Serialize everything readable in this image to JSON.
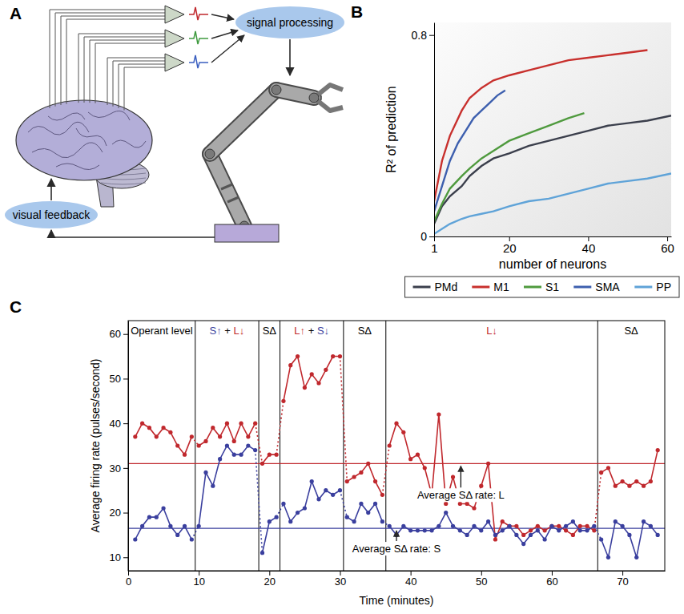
{
  "diagram": {
    "panel_label": "A",
    "nodes": [
      {
        "label": "signal processing"
      },
      {
        "label": "visual feedback"
      }
    ]
  },
  "chart_data": [
    {
      "type": "line",
      "panel_label": "B",
      "x_label": "number of neurons",
      "y_label": "R² of prediction",
      "xlim": [
        1,
        61
      ],
      "xticks": [
        1,
        20,
        40,
        60
      ],
      "ylim": [
        0,
        0.85
      ],
      "yticks": [
        0,
        0.8
      ],
      "legend": "bottom",
      "series": [
        {
          "name": "PMd",
          "color": "#3b3f4c",
          "x": [
            1,
            3,
            5,
            8,
            10,
            13,
            16,
            20,
            25,
            30,
            35,
            40,
            45,
            50,
            55,
            61
          ],
          "values": [
            0.05,
            0.12,
            0.16,
            0.2,
            0.24,
            0.28,
            0.31,
            0.33,
            0.36,
            0.38,
            0.4,
            0.42,
            0.44,
            0.45,
            0.46,
            0.48
          ]
        },
        {
          "name": "M1",
          "color": "#c8302d",
          "x": [
            1,
            3,
            5,
            8,
            10,
            13,
            16,
            20,
            25,
            30,
            35,
            40,
            45,
            50,
            55
          ],
          "values": [
            0.14,
            0.3,
            0.4,
            0.5,
            0.55,
            0.59,
            0.62,
            0.64,
            0.66,
            0.68,
            0.7,
            0.71,
            0.72,
            0.73,
            0.74
          ]
        },
        {
          "name": "S1",
          "color": "#4f9a3e",
          "x": [
            1,
            3,
            5,
            8,
            10,
            13,
            16,
            20,
            25,
            30,
            35,
            39
          ],
          "values": [
            0.06,
            0.13,
            0.19,
            0.24,
            0.27,
            0.31,
            0.34,
            0.38,
            0.41,
            0.44,
            0.47,
            0.49
          ]
        },
        {
          "name": "SMA",
          "color": "#3d5fae",
          "x": [
            1,
            3,
            5,
            7,
            9,
            11,
            13,
            15,
            17,
            19
          ],
          "values": [
            0.1,
            0.2,
            0.3,
            0.37,
            0.42,
            0.47,
            0.5,
            0.53,
            0.56,
            0.58
          ]
        },
        {
          "name": "PP",
          "color": "#5fa3d8",
          "x": [
            1,
            3,
            5,
            8,
            10,
            13,
            16,
            20,
            25,
            30,
            35,
            40,
            45,
            50,
            55,
            61
          ],
          "values": [
            0.01,
            0.03,
            0.05,
            0.07,
            0.08,
            0.09,
            0.1,
            0.12,
            0.14,
            0.15,
            0.17,
            0.19,
            0.21,
            0.22,
            0.23,
            0.25
          ]
        }
      ]
    },
    {
      "type": "line",
      "panel_label": "C",
      "x_label": "Time (minutes)",
      "y_label": "Average firing rate (pulses/second)",
      "xlim": [
        0,
        76
      ],
      "xticks": [
        0,
        10,
        20,
        30,
        40,
        50,
        60,
        70
      ],
      "ylim": [
        7,
        63
      ],
      "yticks": [
        10,
        20,
        30,
        40,
        50,
        60
      ],
      "marker": "circle",
      "x": [
        1,
        2,
        3,
        4,
        5,
        6,
        7,
        8,
        9,
        10,
        11,
        12,
        13,
        14,
        15,
        16,
        17,
        18,
        19,
        20,
        21,
        22,
        23,
        24,
        25,
        26,
        27,
        28,
        29,
        30,
        31,
        32,
        33,
        34,
        35,
        36,
        37,
        38,
        39,
        40,
        41,
        42,
        43,
        44,
        45,
        46,
        47,
        48,
        49,
        50,
        51,
        52,
        53,
        54,
        55,
        56,
        57,
        58,
        59,
        60,
        61,
        62,
        63,
        64,
        65,
        66,
        67,
        68,
        69,
        70,
        71,
        72,
        73,
        74,
        75
      ],
      "series": [
        {
          "color": "#c0282d",
          "values": [
            37,
            40,
            39,
            37,
            39,
            38,
            35,
            33,
            37,
            35,
            36,
            39,
            37,
            40,
            36,
            40,
            37,
            40,
            31,
            33,
            33,
            45,
            53,
            55,
            48,
            51,
            49,
            52,
            55,
            55,
            27,
            28,
            29,
            31,
            27,
            24,
            35,
            40,
            38,
            32,
            33,
            30,
            24,
            42,
            22,
            28,
            22,
            22,
            21,
            26,
            31,
            14,
            18,
            17,
            17,
            15,
            16,
            17,
            16,
            17,
            17,
            16,
            15,
            17,
            17,
            16,
            29,
            30,
            26,
            27,
            26,
            27,
            26,
            27,
            34
          ]
        },
        {
          "color": "#3a3f9e",
          "values": [
            14,
            17,
            19,
            19,
            21,
            17,
            15,
            17,
            14,
            17,
            29,
            26,
            32,
            35,
            33,
            33,
            35,
            34,
            11,
            18,
            19,
            22,
            18,
            20,
            21,
            27,
            23,
            25,
            24,
            25,
            19,
            18,
            22,
            20,
            22,
            18,
            17,
            15,
            17,
            16,
            16,
            16,
            16,
            17,
            20,
            17,
            16,
            15,
            17,
            16,
            18,
            15,
            16,
            17,
            15,
            13,
            15,
            16,
            14,
            17,
            16,
            17,
            18,
            16,
            16,
            17,
            14,
            10,
            18,
            17,
            15,
            10,
            18,
            17,
            15
          ]
        }
      ],
      "epochs": [
        {
          "start": 0,
          "end": 9.5,
          "label": [
            {
              "text": "Operant level",
              "color": "#000000"
            }
          ]
        },
        {
          "start": 9.5,
          "end": 18.5,
          "label": [
            {
              "text": "S↑",
              "color": "#3a3f9e"
            },
            {
              "text": " + ",
              "color": "#000000"
            },
            {
              "text": "L↓",
              "color": "#c0282d"
            }
          ]
        },
        {
          "start": 18.5,
          "end": 21.5,
          "label": [
            {
              "text": "SΔ",
              "color": "#000000"
            }
          ]
        },
        {
          "start": 21.5,
          "end": 30.5,
          "label": [
            {
              "text": "L↑",
              "color": "#c0282d"
            },
            {
              "text": " + ",
              "color": "#000000"
            },
            {
              "text": "S↓",
              "color": "#3a3f9e"
            }
          ]
        },
        {
          "start": 30.5,
          "end": 36.5,
          "label": [
            {
              "text": "SΔ",
              "color": "#000000"
            }
          ]
        },
        {
          "start": 36.5,
          "end": 66.5,
          "label": [
            {
              "text": "L↓",
              "color": "#c0282d"
            }
          ]
        },
        {
          "start": 66.5,
          "end": 76,
          "label": [
            {
              "text": "SΔ",
              "color": "#000000"
            }
          ]
        }
      ],
      "reference_lines": [
        {
          "value": 31,
          "color": "#c0282d",
          "label": "Average SΔ rate: L"
        },
        {
          "value": 16.5,
          "color": "#3a3f9e",
          "label": "Average SΔ rate: S"
        }
      ]
    }
  ]
}
